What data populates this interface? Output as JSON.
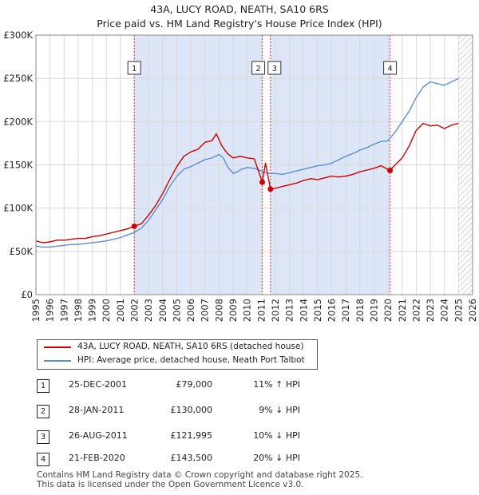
{
  "title_line1": "43A, LUCY ROAD, NEATH, SA10 6RS",
  "title_line2": "Price paid vs. HM Land Registry's House Price Index (HPI)",
  "colors": {
    "property": "#cc0000",
    "hpi": "#5b8fd4",
    "shade": "#dde6f7",
    "hatch": "#bbbbbb",
    "grid": "#d8d8d8",
    "marker_line": "#cc3333"
  },
  "legend": {
    "property_label": "43A, LUCY ROAD, NEATH, SA10 6RS (detached house)",
    "hpi_label": "HPI: Average price, detached house, Neath Port Talbot"
  },
  "transactions": [
    {
      "marker": "1",
      "date": "25-DEC-2001",
      "price": "£79,000",
      "hpi": "11% ↑ HPI"
    },
    {
      "marker": "2",
      "date": "28-JAN-2011",
      "price": "£130,000",
      "hpi": "9% ↓ HPI"
    },
    {
      "marker": "3",
      "date": "26-AUG-2011",
      "price": "£121,995",
      "hpi": "10% ↓ HPI"
    },
    {
      "marker": "4",
      "date": "21-FEB-2020",
      "price": "£143,500",
      "hpi": "20% ↓ HPI"
    }
  ],
  "footer_line1": "Contains HM Land Registry data © Crown copyright and database right 2025.",
  "footer_line2": "This data is licensed under the Open Government Licence v3.0.",
  "chart_data": {
    "type": "line",
    "title": "43A, LUCY ROAD, NEATH, SA10 6RS",
    "subtitle": "Price paid vs. HM Land Registry's House Price Index (HPI)",
    "xlim": [
      1995,
      2026
    ],
    "ylim": [
      0,
      300000
    ],
    "x_ticks": [
      "1995",
      "1996",
      "1997",
      "1998",
      "1999",
      "2000",
      "2001",
      "2002",
      "2003",
      "2004",
      "2005",
      "2006",
      "2007",
      "2008",
      "2009",
      "2010",
      "2011",
      "2012",
      "2013",
      "2014",
      "2015",
      "2016",
      "2017",
      "2018",
      "2019",
      "2020",
      "2021",
      "2022",
      "2023",
      "2024",
      "2025",
      "2026"
    ],
    "y_ticks": [
      {
        "value": 0,
        "label": "£0"
      },
      {
        "value": 50000,
        "label": "£50K"
      },
      {
        "value": 100000,
        "label": "£100K"
      },
      {
        "value": 150000,
        "label": "£150K"
      },
      {
        "value": 200000,
        "label": "£200K"
      },
      {
        "value": 250000,
        "label": "£250K"
      },
      {
        "value": 300000,
        "label": "£300K"
      }
    ],
    "shaded_ranges": [
      [
        2001.98,
        2011.07
      ],
      [
        2011.65,
        2020.14
      ]
    ],
    "hatched_range": [
      2025.0,
      2026
    ],
    "sale_markers": [
      {
        "label": "1",
        "x": 2001.98,
        "y": 79000
      },
      {
        "label": "2",
        "x": 2011.07,
        "y": 130000
      },
      {
        "label": "3",
        "x": 2011.65,
        "y": 121995
      },
      {
        "label": "4",
        "x": 2020.14,
        "y": 143500
      }
    ],
    "series": [
      {
        "name": "43A, LUCY ROAD, NEATH, SA10 6RS (detached house)",
        "color": "#cc0000",
        "x": [
          1995.0,
          1995.5,
          1996.0,
          1996.5,
          1997.0,
          1997.5,
          1998.0,
          1998.5,
          1999.0,
          1999.5,
          2000.0,
          2000.5,
          2001.0,
          2001.5,
          2001.98,
          2002.5,
          2003.0,
          2003.5,
          2004.0,
          2004.5,
          2005.0,
          2005.5,
          2006.0,
          2006.5,
          2007.0,
          2007.5,
          2007.8,
          2008.2,
          2008.6,
          2009.0,
          2009.5,
          2010.0,
          2010.5,
          2011.07,
          2011.3,
          2011.65,
          2012.0,
          2012.5,
          2013.0,
          2013.5,
          2014.0,
          2014.5,
          2015.0,
          2015.5,
          2016.0,
          2016.5,
          2017.0,
          2017.5,
          2018.0,
          2018.5,
          2019.0,
          2019.5,
          2020.14,
          2020.5,
          2021.0,
          2021.5,
          2022.0,
          2022.5,
          2023.0,
          2023.5,
          2024.0,
          2024.5,
          2025.0
        ],
        "y": [
          62000,
          60000,
          61000,
          63000,
          63000,
          64000,
          65000,
          65000,
          67000,
          68000,
          70000,
          72000,
          74000,
          76000,
          79000,
          82000,
          92000,
          103000,
          117000,
          133000,
          148000,
          160000,
          165000,
          168000,
          176000,
          178000,
          186000,
          172000,
          163000,
          158000,
          160000,
          158000,
          157000,
          130000,
          152000,
          121995,
          123000,
          125000,
          127000,
          129000,
          132000,
          134000,
          133000,
          135000,
          137000,
          136000,
          137000,
          139000,
          142000,
          144000,
          146000,
          149000,
          143500,
          150000,
          158000,
          172000,
          190000,
          198000,
          195000,
          196000,
          192000,
          196000,
          198000
        ]
      },
      {
        "name": "HPI: Average price, detached house, Neath Port Talbot",
        "color": "#5b8fd4",
        "x": [
          1995.0,
          1995.5,
          1996.0,
          1996.5,
          1997.0,
          1997.5,
          1998.0,
          1998.5,
          1999.0,
          1999.5,
          2000.0,
          2000.5,
          2001.0,
          2001.5,
          2002.0,
          2002.5,
          2003.0,
          2003.5,
          2004.0,
          2004.5,
          2005.0,
          2005.5,
          2006.0,
          2006.5,
          2007.0,
          2007.5,
          2008.0,
          2008.3,
          2008.6,
          2009.0,
          2009.3,
          2009.6,
          2010.0,
          2010.5,
          2011.0,
          2011.5,
          2012.0,
          2012.5,
          2013.0,
          2013.5,
          2014.0,
          2014.5,
          2015.0,
          2015.5,
          2016.0,
          2016.5,
          2017.0,
          2017.5,
          2018.0,
          2018.5,
          2019.0,
          2019.5,
          2020.0,
          2020.5,
          2021.0,
          2021.5,
          2022.0,
          2022.5,
          2023.0,
          2023.5,
          2024.0,
          2024.5,
          2025.0
        ],
        "y": [
          56000,
          55000,
          55000,
          56000,
          57000,
          58000,
          58000,
          59000,
          60000,
          61000,
          62000,
          64000,
          66000,
          69000,
          72000,
          77000,
          86000,
          98000,
          110000,
          125000,
          137000,
          145000,
          148000,
          152000,
          156000,
          158000,
          162000,
          158000,
          148000,
          140000,
          142000,
          145000,
          147000,
          146000,
          143000,
          140000,
          140000,
          139000,
          141000,
          143000,
          145000,
          147000,
          149000,
          150000,
          152000,
          156000,
          160000,
          163000,
          167000,
          170000,
          174000,
          177000,
          178000,
          188000,
          200000,
          212000,
          228000,
          240000,
          246000,
          244000,
          242000,
          246000,
          250000
        ]
      }
    ]
  }
}
